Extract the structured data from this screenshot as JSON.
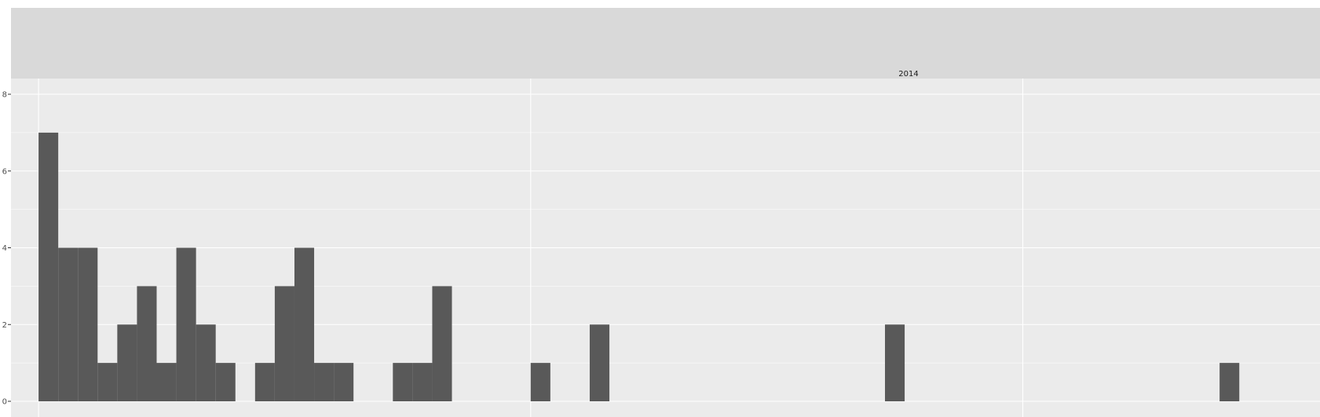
{
  "chart_data": {
    "type": "histogram",
    "facet_label": "2014",
    "y_ticks": [
      0,
      2,
      4,
      6,
      8
    ],
    "ylim": [
      0,
      8
    ],
    "bin_width": 1,
    "xlim": [
      -1.4,
      65.1
    ],
    "x_gridlines": [
      0,
      25,
      50
    ],
    "bars": [
      {
        "x": 0,
        "count": 7
      },
      {
        "x": 1,
        "count": 4
      },
      {
        "x": 2,
        "count": 4
      },
      {
        "x": 3,
        "count": 1
      },
      {
        "x": 4,
        "count": 2
      },
      {
        "x": 5,
        "count": 3
      },
      {
        "x": 6,
        "count": 1
      },
      {
        "x": 7,
        "count": 4
      },
      {
        "x": 8,
        "count": 2
      },
      {
        "x": 9,
        "count": 1
      },
      {
        "x": 11,
        "count": 1
      },
      {
        "x": 12,
        "count": 3
      },
      {
        "x": 13,
        "count": 4
      },
      {
        "x": 14,
        "count": 1
      },
      {
        "x": 15,
        "count": 1
      },
      {
        "x": 18,
        "count": 1
      },
      {
        "x": 19,
        "count": 1
      },
      {
        "x": 20,
        "count": 3
      },
      {
        "x": 25,
        "count": 1
      },
      {
        "x": 28,
        "count": 2
      },
      {
        "x": 43,
        "count": 2
      },
      {
        "x": 60,
        "count": 1
      }
    ],
    "grid": true,
    "bar_color": "#595959",
    "panel_color": "#ebebeb",
    "strip_color": "#d9d9d9",
    "grid_color": "#ffffff"
  }
}
